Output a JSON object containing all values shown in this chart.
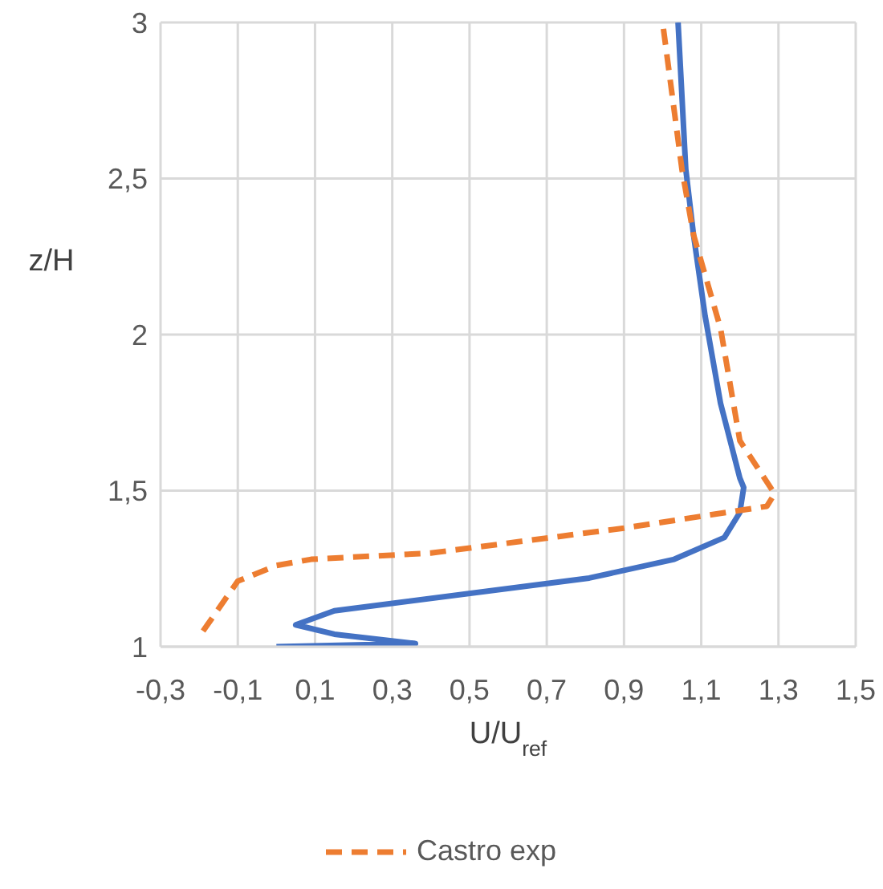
{
  "chart_data": {
    "type": "line",
    "xlabel": "U/U$_{ref}$",
    "ylabel": "z/H",
    "xlim": [
      -0.3,
      1.5
    ],
    "xticks": [
      {
        "value": -0.3,
        "label": "-0,3"
      },
      {
        "value": -0.1,
        "label": "-0,1"
      },
      {
        "value": 0.1,
        "label": "0,1"
      },
      {
        "value": 0.3,
        "label": "0,3"
      },
      {
        "value": 0.5,
        "label": "0,5"
      },
      {
        "value": 0.7,
        "label": "0,7"
      },
      {
        "value": 0.9,
        "label": "0,9"
      },
      {
        "value": 1.1,
        "label": "1,1"
      },
      {
        "value": 1.3,
        "label": "1,3"
      },
      {
        "value": 1.5,
        "label": "1,5"
      }
    ],
    "ylim": [
      1,
      3
    ],
    "yticks": [
      1,
      {
        "value": 1.5,
        "label": "1,5"
      },
      2,
      {
        "value": 2.5,
        "label": "2,5"
      },
      3
    ],
    "grid": true,
    "legend": "bottom",
    "marker": "none",
    "series": [
      {
        "color": "#4472c4",
        "line_style": "solid",
        "x": [
          0,
          0.36,
          0.15,
          0.05,
          0.15,
          0.81,
          1.03,
          1.16,
          1.2,
          1.21,
          1.2,
          1.15,
          1.11,
          1.08,
          1.06,
          1.04
        ],
        "values": [
          1,
          1.01,
          1.04,
          1.07,
          1.115,
          1.22,
          1.28,
          1.35,
          1.43,
          1.51,
          1.54,
          1.78,
          2.06,
          2.32,
          2.53,
          3
        ]
      },
      {
        "name": "Castro exp",
        "color": "#ed7d31",
        "line_style": "dashed",
        "x": [
          -0.19,
          -0.1,
          0,
          0.09,
          0.4,
          0.9,
          1.27,
          1.29,
          1.2,
          1.15,
          1.08,
          1.05,
          1.0
        ],
        "values": [
          1.05,
          1.21,
          1.26,
          1.28,
          1.3,
          1.38,
          1.45,
          1.49,
          1.66,
          2.02,
          2.32,
          2.53,
          3
        ]
      }
    ]
  }
}
